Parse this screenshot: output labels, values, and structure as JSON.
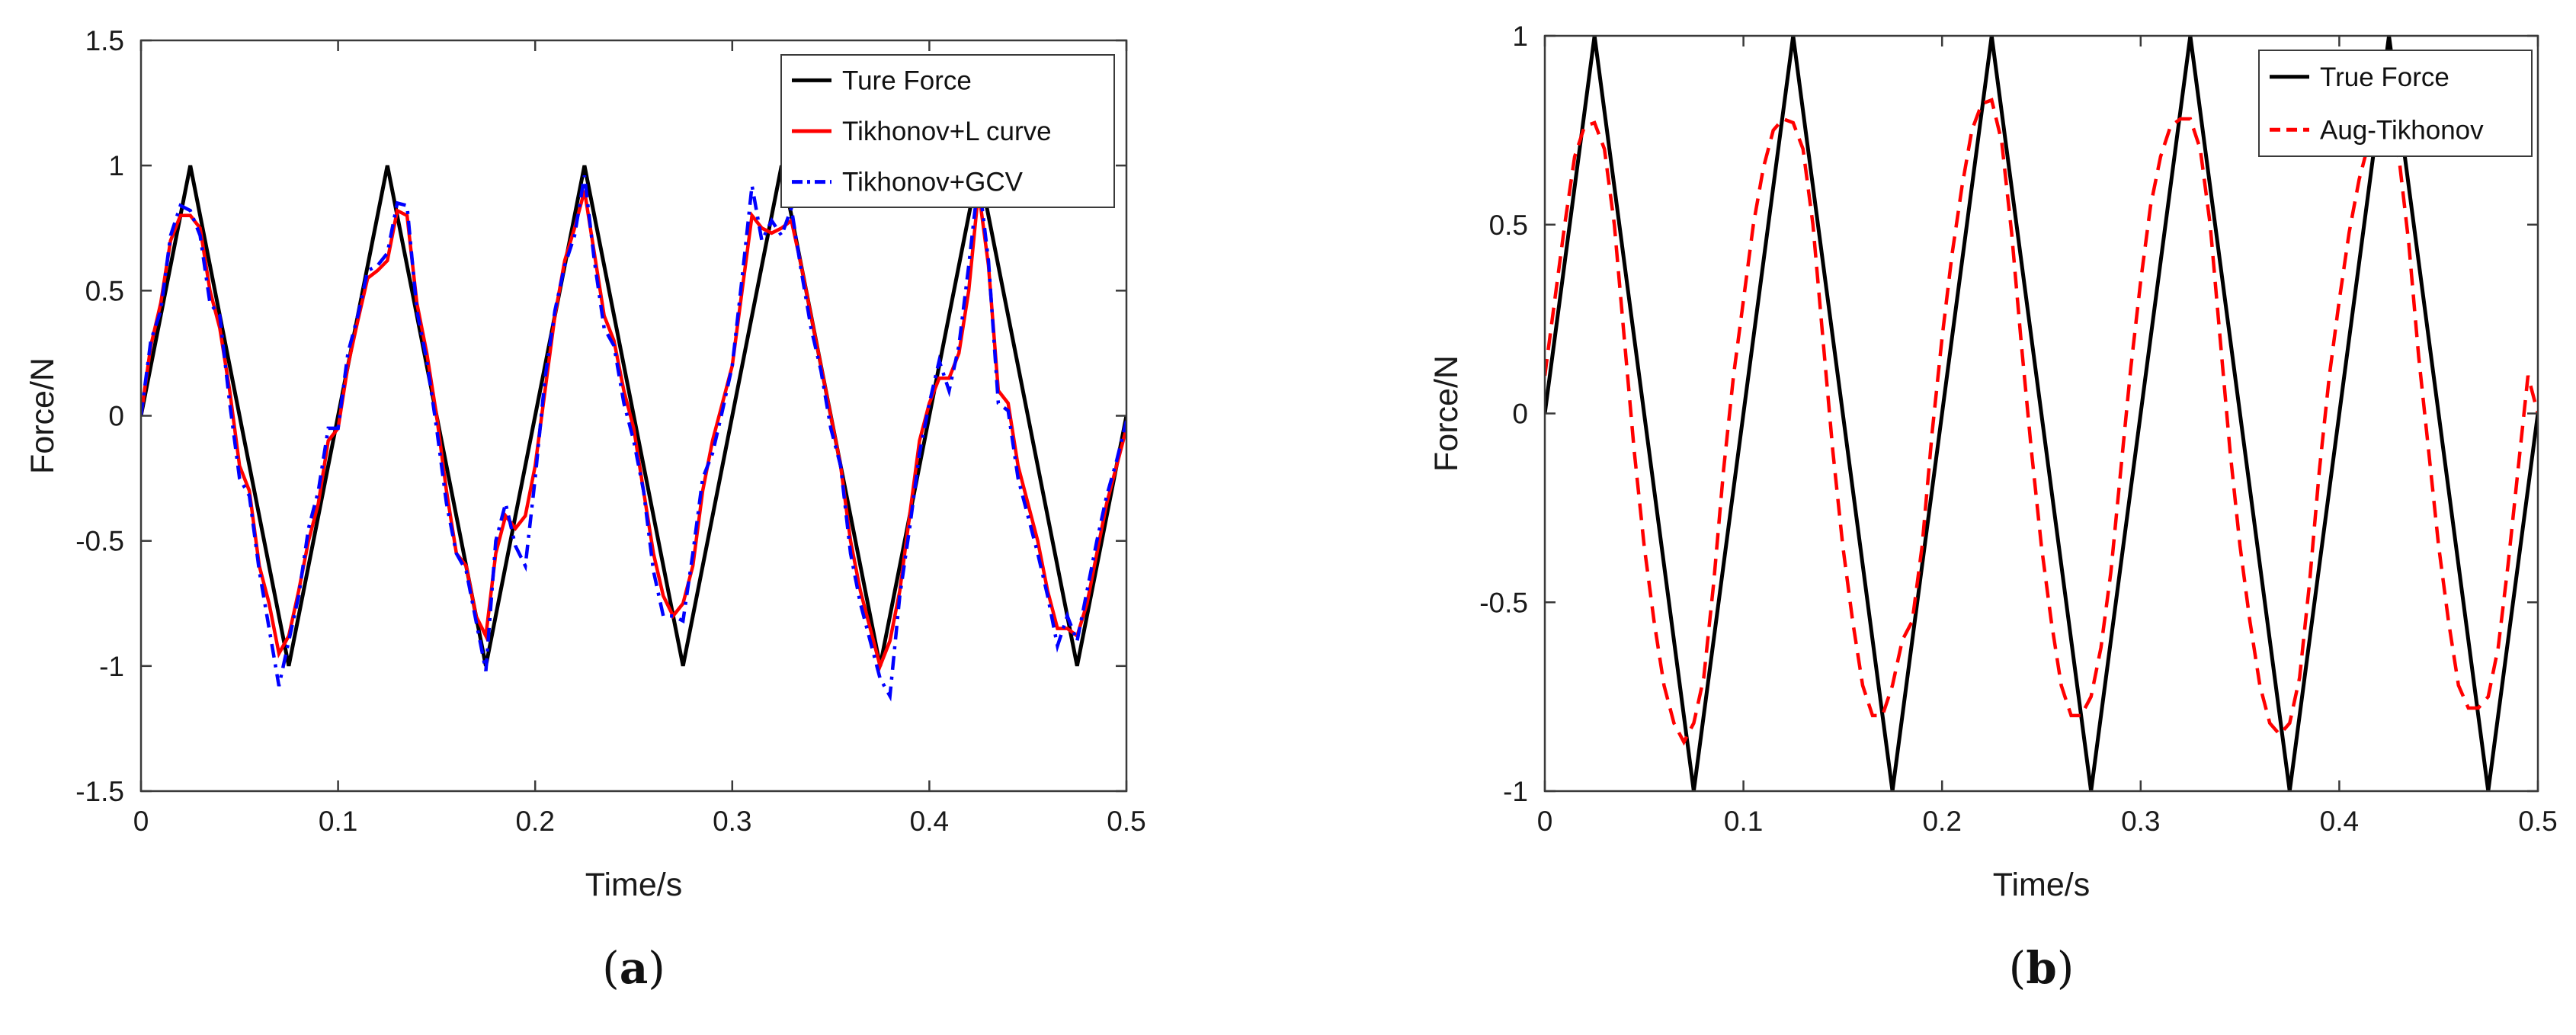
{
  "chart_data": [
    {
      "type": "line",
      "panel_label": {
        "open": "(",
        "letter": "a",
        "close": ")"
      },
      "xlabel": "Time/s",
      "ylabel": "Force/N",
      "xlim": [
        0,
        0.5
      ],
      "ylim": [
        -1.5,
        1.5
      ],
      "xticks": [
        "0",
        "0.1",
        "0.2",
        "0.3",
        "0.4",
        "0.5"
      ],
      "yticks": [
        "-1.5",
        "-1",
        "-0.5",
        "0",
        "0.5",
        "1",
        "1.5"
      ],
      "xtick_values": [
        0,
        0.1,
        0.2,
        0.3,
        0.4,
        0.5
      ],
      "ytick_values": [
        -1.5,
        -1,
        -0.5,
        0,
        0.5,
        1,
        1.5
      ],
      "legend_position": "top-right",
      "series": [
        {
          "name": "Ture Force",
          "color": "#000000",
          "style": "solid",
          "x": [
            0,
            0.025,
            0.075,
            0.125,
            0.175,
            0.225,
            0.275,
            0.325,
            0.375,
            0.425,
            0.475,
            0.5
          ],
          "y": [
            0,
            1,
            -1,
            1,
            -1,
            1,
            -1,
            1,
            -1,
            1,
            -1,
            0
          ]
        },
        {
          "name": "Tikhonov+L curve",
          "color": "#ff0000",
          "style": "solid",
          "x": [
            0,
            0.005,
            0.01,
            0.015,
            0.02,
            0.025,
            0.03,
            0.035,
            0.04,
            0.045,
            0.05,
            0.055,
            0.06,
            0.065,
            0.07,
            0.075,
            0.08,
            0.085,
            0.09,
            0.095,
            0.1,
            0.105,
            0.11,
            0.115,
            0.12,
            0.125,
            0.13,
            0.135,
            0.14,
            0.145,
            0.15,
            0.155,
            0.16,
            0.165,
            0.17,
            0.175,
            0.18,
            0.185,
            0.19,
            0.195,
            0.2,
            0.205,
            0.21,
            0.215,
            0.22,
            0.225,
            0.23,
            0.235,
            0.24,
            0.245,
            0.25,
            0.255,
            0.26,
            0.265,
            0.27,
            0.275,
            0.28,
            0.285,
            0.29,
            0.295,
            0.3,
            0.305,
            0.31,
            0.315,
            0.32,
            0.325,
            0.33,
            0.335,
            0.34,
            0.345,
            0.35,
            0.355,
            0.36,
            0.365,
            0.37,
            0.375,
            0.38,
            0.385,
            0.39,
            0.395,
            0.4,
            0.405,
            0.41,
            0.415,
            0.42,
            0.425,
            0.43,
            0.435,
            0.44,
            0.445,
            0.45,
            0.455,
            0.46,
            0.465,
            0.47,
            0.475,
            0.48,
            0.485,
            0.49,
            0.495,
            0.5
          ],
          "y": [
            0,
            0.28,
            0.45,
            0.7,
            0.8,
            0.8,
            0.75,
            0.5,
            0.35,
            0.1,
            -0.2,
            -0.3,
            -0.6,
            -0.75,
            -0.95,
            -0.88,
            -0.7,
            -0.5,
            -0.35,
            -0.1,
            -0.05,
            0.2,
            0.38,
            0.55,
            0.58,
            0.62,
            0.82,
            0.8,
            0.45,
            0.25,
            0,
            -0.3,
            -0.55,
            -0.6,
            -0.8,
            -0.88,
            -0.55,
            -0.4,
            -0.45,
            -0.4,
            -0.2,
            0.1,
            0.4,
            0.62,
            0.75,
            0.9,
            0.65,
            0.4,
            0.3,
            0.1,
            -0.05,
            -0.3,
            -0.55,
            -0.72,
            -0.8,
            -0.75,
            -0.6,
            -0.3,
            -0.1,
            0.05,
            0.2,
            0.5,
            0.8,
            0.75,
            0.73,
            0.75,
            0.78,
            0.6,
            0.4,
            0.2,
            0,
            -0.2,
            -0.5,
            -0.7,
            -0.85,
            -1,
            -0.9,
            -0.7,
            -0.4,
            -0.1,
            0.05,
            0.15,
            0.15,
            0.25,
            0.5,
            0.9,
            0.6,
            0.1,
            0.05,
            -0.2,
            -0.35,
            -0.5,
            -0.7,
            -0.85,
            -0.85,
            -0.88,
            -0.75,
            -0.55,
            -0.35,
            -0.2,
            -0.05
          ]
        },
        {
          "name": "Tikhonov+GCV",
          "color": "#0000ff",
          "style": "dashdot",
          "x": [
            0,
            0.005,
            0.01,
            0.015,
            0.02,
            0.025,
            0.03,
            0.035,
            0.04,
            0.045,
            0.05,
            0.055,
            0.06,
            0.065,
            0.07,
            0.075,
            0.08,
            0.085,
            0.09,
            0.095,
            0.1,
            0.105,
            0.11,
            0.115,
            0.12,
            0.125,
            0.13,
            0.135,
            0.14,
            0.145,
            0.15,
            0.155,
            0.16,
            0.165,
            0.17,
            0.175,
            0.18,
            0.185,
            0.19,
            0.195,
            0.2,
            0.205,
            0.21,
            0.215,
            0.22,
            0.225,
            0.23,
            0.235,
            0.24,
            0.245,
            0.25,
            0.255,
            0.26,
            0.265,
            0.27,
            0.275,
            0.28,
            0.285,
            0.29,
            0.295,
            0.3,
            0.305,
            0.31,
            0.315,
            0.32,
            0.325,
            0.33,
            0.335,
            0.34,
            0.345,
            0.35,
            0.355,
            0.36,
            0.365,
            0.37,
            0.375,
            0.38,
            0.385,
            0.39,
            0.395,
            0.4,
            0.405,
            0.41,
            0.415,
            0.42,
            0.425,
            0.43,
            0.435,
            0.44,
            0.445,
            0.45,
            0.455,
            0.46,
            0.465,
            0.47,
            0.475,
            0.48,
            0.485,
            0.49,
            0.495,
            0.5
          ],
          "y": [
            0,
            0.3,
            0.42,
            0.72,
            0.84,
            0.82,
            0.72,
            0.45,
            0.4,
            0.05,
            -0.25,
            -0.32,
            -0.62,
            -0.85,
            -1.08,
            -0.9,
            -0.72,
            -0.45,
            -0.3,
            -0.05,
            -0.05,
            0.25,
            0.4,
            0.58,
            0.6,
            0.65,
            0.85,
            0.84,
            0.42,
            0.22,
            -0.05,
            -0.35,
            -0.55,
            -0.62,
            -0.82,
            -1.02,
            -0.5,
            -0.35,
            -0.52,
            -0.6,
            -0.25,
            0.15,
            0.42,
            0.6,
            0.72,
            0.96,
            0.62,
            0.35,
            0.28,
            0.05,
            -0.1,
            -0.3,
            -0.62,
            -0.8,
            -0.8,
            -0.82,
            -0.55,
            -0.25,
            -0.15,
            0.02,
            0.2,
            0.55,
            0.92,
            0.7,
            0.78,
            0.72,
            0.83,
            0.58,
            0.35,
            0.18,
            -0.05,
            -0.2,
            -0.55,
            -0.75,
            -0.9,
            -1.05,
            -1.12,
            -0.72,
            -0.45,
            -0.15,
            0.05,
            0.22,
            0.1,
            0.28,
            0.6,
            0.95,
            0.62,
            0.05,
            0.02,
            -0.25,
            -0.4,
            -0.55,
            -0.72,
            -0.92,
            -0.8,
            -0.9,
            -0.7,
            -0.5,
            -0.32,
            -0.18,
            -0.02
          ]
        }
      ]
    },
    {
      "type": "line",
      "panel_label": {
        "open": "(",
        "letter": "b",
        "close": ")"
      },
      "xlabel": "Time/s",
      "ylabel": "Force/N",
      "xlim": [
        0,
        0.5
      ],
      "ylim": [
        -1,
        1
      ],
      "xticks": [
        "0",
        "0.1",
        "0.2",
        "0.3",
        "0.4",
        "0.5"
      ],
      "yticks": [
        "-1",
        "-0.5",
        "0",
        "0.5",
        "1"
      ],
      "xtick_values": [
        0,
        0.1,
        0.2,
        0.3,
        0.4,
        0.5
      ],
      "ytick_values": [
        -1,
        -0.5,
        0,
        0.5,
        1
      ],
      "legend_position": "top-right",
      "series": [
        {
          "name": "True Force",
          "color": "#000000",
          "style": "solid",
          "x": [
            0,
            0.025,
            0.075,
            0.125,
            0.175,
            0.225,
            0.275,
            0.325,
            0.375,
            0.425,
            0.475,
            0.5
          ],
          "y": [
            0,
            1,
            -1,
            1,
            -1,
            1,
            -1,
            1,
            -1,
            1,
            -1,
            0
          ]
        },
        {
          "name": "Aug-Tikhonov",
          "color": "#ff0000",
          "style": "dashed",
          "x": [
            0,
            0.005,
            0.01,
            0.015,
            0.02,
            0.025,
            0.03,
            0.035,
            0.04,
            0.045,
            0.05,
            0.055,
            0.06,
            0.065,
            0.07,
            0.075,
            0.08,
            0.085,
            0.09,
            0.095,
            0.1,
            0.105,
            0.11,
            0.115,
            0.12,
            0.125,
            0.13,
            0.135,
            0.14,
            0.145,
            0.15,
            0.155,
            0.16,
            0.165,
            0.17,
            0.175,
            0.18,
            0.185,
            0.19,
            0.195,
            0.2,
            0.205,
            0.21,
            0.215,
            0.22,
            0.225,
            0.23,
            0.235,
            0.24,
            0.245,
            0.25,
            0.255,
            0.26,
            0.265,
            0.27,
            0.275,
            0.28,
            0.285,
            0.29,
            0.295,
            0.3,
            0.305,
            0.31,
            0.315,
            0.32,
            0.325,
            0.33,
            0.335,
            0.34,
            0.345,
            0.35,
            0.355,
            0.36,
            0.365,
            0.37,
            0.375,
            0.38,
            0.385,
            0.39,
            0.395,
            0.4,
            0.405,
            0.41,
            0.415,
            0.42,
            0.425,
            0.43,
            0.435,
            0.44,
            0.445,
            0.45,
            0.455,
            0.46,
            0.465,
            0.47,
            0.475,
            0.48,
            0.485,
            0.49,
            0.495,
            0.5
          ],
          "y": [
            0.1,
            0.3,
            0.5,
            0.68,
            0.76,
            0.77,
            0.7,
            0.5,
            0.2,
            -0.1,
            -0.35,
            -0.55,
            -0.72,
            -0.82,
            -0.87,
            -0.82,
            -0.7,
            -0.45,
            -0.15,
            0.1,
            0.3,
            0.5,
            0.65,
            0.75,
            0.78,
            0.77,
            0.7,
            0.5,
            0.2,
            -0.1,
            -0.35,
            -0.55,
            -0.72,
            -0.8,
            -0.8,
            -0.72,
            -0.6,
            -0.55,
            -0.35,
            -0.05,
            0.2,
            0.42,
            0.6,
            0.75,
            0.82,
            0.83,
            0.72,
            0.48,
            0.18,
            -0.1,
            -0.35,
            -0.55,
            -0.72,
            -0.8,
            -0.8,
            -0.75,
            -0.62,
            -0.42,
            -0.15,
            0.12,
            0.35,
            0.55,
            0.68,
            0.76,
            0.78,
            0.78,
            0.7,
            0.5,
            0.2,
            -0.1,
            -0.35,
            -0.55,
            -0.72,
            -0.82,
            -0.85,
            -0.82,
            -0.7,
            -0.45,
            -0.15,
            0.1,
            0.3,
            0.48,
            0.62,
            0.72,
            0.78,
            0.75,
            0.68,
            0.45,
            0.15,
            -0.1,
            -0.35,
            -0.55,
            -0.72,
            -0.78,
            -0.78,
            -0.75,
            -0.62,
            -0.4,
            -0.15,
            0.1,
            0
          ]
        }
      ]
    }
  ]
}
